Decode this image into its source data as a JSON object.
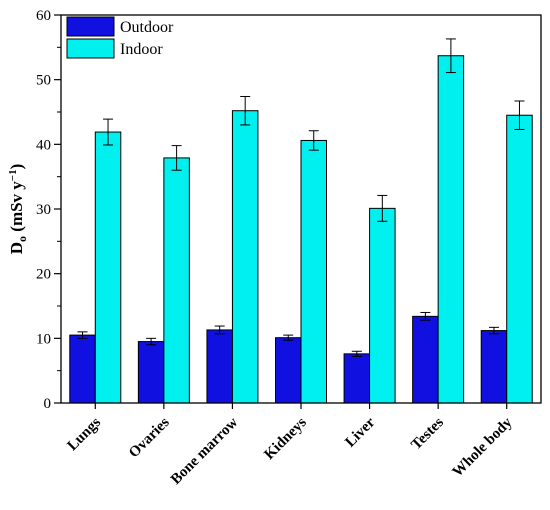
{
  "chart_data": {
    "type": "bar",
    "categories": [
      "Lungs",
      "Ovaries",
      "Bone marrow",
      "Kidneys",
      "Liver",
      "Testes",
      "Whole body"
    ],
    "series": [
      {
        "name": "Outdoor",
        "color": "#1010e0",
        "values": [
          10.5,
          9.5,
          11.3,
          10.1,
          7.6,
          13.4,
          11.2
        ],
        "errors": [
          0.5,
          0.5,
          0.6,
          0.4,
          0.4,
          0.6,
          0.5
        ]
      },
      {
        "name": "Indoor",
        "color": "#00f0f0",
        "values": [
          41.9,
          37.9,
          45.2,
          40.6,
          30.1,
          53.7,
          44.5
        ],
        "errors": [
          2.0,
          1.9,
          2.2,
          1.5,
          2.0,
          2.6,
          2.2
        ]
      }
    ],
    "ylabel": "Do (mSv y⁻¹)",
    "ylabel_main": "D",
    "ylabel_sub": "o",
    "ylabel_unit": " (mSv y",
    "ylabel_sup": "−1",
    "ylabel_close": ")",
    "xlabel": "",
    "ylim": [
      0,
      60
    ],
    "yticks": [
      0,
      10,
      20,
      30,
      40,
      50,
      60
    ],
    "legend_position": "top-left",
    "grid": false
  }
}
